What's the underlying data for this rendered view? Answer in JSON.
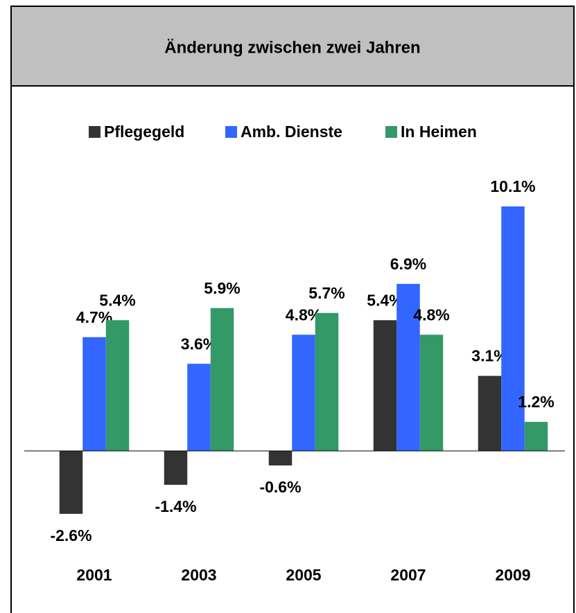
{
  "chart_data": {
    "type": "bar",
    "title": "Änderung zwischen zwei Jahren",
    "categories": [
      "2001",
      "2003",
      "2005",
      "2007",
      "2009"
    ],
    "series": [
      {
        "name": "Pflegegeld",
        "color": "#333333",
        "values": [
          -2.6,
          -1.4,
          -0.6,
          5.4,
          3.1
        ],
        "value_labels": [
          "-2.6%",
          "-1.4%",
          "-0.6%",
          "5.4%",
          "3.1%"
        ]
      },
      {
        "name": "Amb. Dienste",
        "color": "#3366ff",
        "values": [
          4.7,
          3.6,
          4.8,
          6.9,
          10.1
        ],
        "value_labels": [
          "4.7%",
          "3.6%",
          "4.8%",
          "6.9%",
          "10.1%"
        ]
      },
      {
        "name": "In Heimen",
        "color": "#339966",
        "values": [
          5.4,
          5.9,
          5.7,
          4.8,
          1.2
        ],
        "value_labels": [
          "5.4%",
          "5.9%",
          "5.7%",
          "4.8%",
          "1.2%"
        ]
      }
    ],
    "legend": "top"
  }
}
